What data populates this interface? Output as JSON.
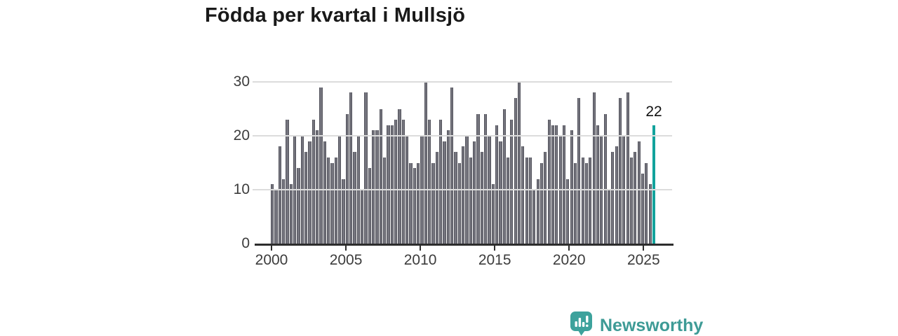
{
  "title": "Födda per kvartal i Mullsjö",
  "chart_data": {
    "type": "bar",
    "title": "Födda per kvartal i Mullsjö",
    "frequency": "quarterly",
    "start_period": "2000-Q1",
    "end_period": "2025-Q3",
    "x_tick_labels": [
      "2000",
      "2005",
      "2010",
      "2015",
      "2020",
      "2025"
    ],
    "y_tick_labels": [
      "0",
      "10",
      "20",
      "30"
    ],
    "ylim": [
      0,
      30
    ],
    "grid": "horizontal",
    "legend": "none",
    "series": [
      {
        "name": "Födda per kvartal i Mullsjö",
        "values": [
          11,
          10,
          18,
          12,
          23,
          11,
          20,
          14,
          20,
          17,
          19,
          23,
          21,
          29,
          19,
          16,
          15,
          16,
          20,
          12,
          24,
          28,
          17,
          20,
          10,
          28,
          14,
          21,
          21,
          25,
          16,
          22,
          22,
          23,
          25,
          23,
          20,
          15,
          14,
          15,
          20,
          30,
          23,
          15,
          17,
          23,
          19,
          21,
          29,
          17,
          15,
          18,
          20,
          16,
          19,
          24,
          17,
          24,
          20,
          11,
          22,
          19,
          25,
          16,
          23,
          27,
          30,
          18,
          16,
          16,
          10,
          12,
          15,
          17,
          23,
          22,
          22,
          20,
          22,
          12,
          21,
          15,
          27,
          16,
          15,
          16,
          28,
          22,
          20,
          24,
          10,
          17,
          18,
          27,
          20,
          28,
          16,
          17,
          19,
          13,
          15,
          11,
          22
        ]
      }
    ],
    "highlight": {
      "index": 102,
      "period": "2025-Q3",
      "value": 22,
      "label": "22"
    },
    "colors": {
      "bar": "#75757e",
      "bar_edge": "#54545d",
      "highlight": "#12a39c",
      "gridline": "#dcdcdc",
      "axis": "#2d2d2d",
      "tick_label": "#3c3c3c",
      "title": "#191919"
    }
  },
  "annotation_label": "22",
  "footer": {
    "brand": "Newsworthy",
    "logo_color": "#3da29c",
    "text_color": "#3e9b96"
  }
}
